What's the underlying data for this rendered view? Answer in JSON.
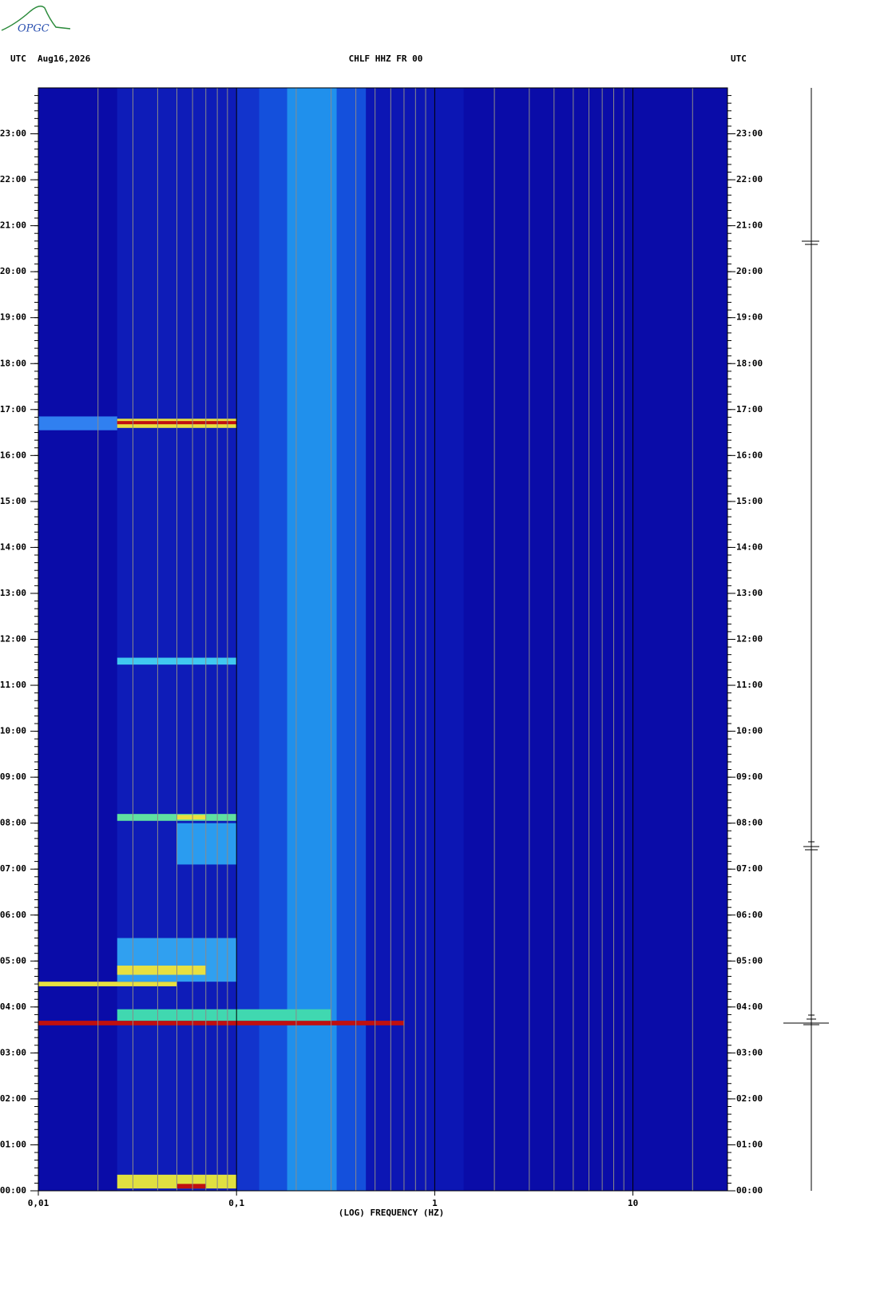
{
  "logo": "OPGC",
  "chart_data": {
    "type": "spectrogram",
    "header_left": "UTC",
    "date": "Aug16,2026",
    "title": "CHLF HHZ FR 00",
    "header_right": "UTC",
    "xlabel": "(LOG) FREQUENCY (HZ)",
    "xscale": "log",
    "xlim": [
      0.01,
      30
    ],
    "xticks": [
      {
        "value": 0.01,
        "label": "0,01"
      },
      {
        "value": 0.1,
        "label": "0,1"
      },
      1,
      10
    ],
    "ylim": [
      0,
      24
    ],
    "yticks": [
      {
        "value": 0,
        "label": "00:00"
      },
      {
        "value": 1,
        "label": "01:00"
      },
      {
        "value": 2,
        "label": "02:00"
      },
      {
        "value": 3,
        "label": "03:00"
      },
      {
        "value": 4,
        "label": "04:00"
      },
      {
        "value": 5,
        "label": "05:00"
      },
      {
        "value": 6,
        "label": "06:00"
      },
      {
        "value": 7,
        "label": "07:00"
      },
      {
        "value": 8,
        "label": "08:00"
      },
      {
        "value": 9,
        "label": "09:00"
      },
      {
        "value": 10,
        "label": "10:00"
      },
      {
        "value": 11,
        "label": "11:00"
      },
      {
        "value": 12,
        "label": "12:00"
      },
      {
        "value": 13,
        "label": "13:00"
      },
      {
        "value": 14,
        "label": "14:00"
      },
      {
        "value": 15,
        "label": "15:00"
      },
      {
        "value": 16,
        "label": "16:00"
      },
      {
        "value": 17,
        "label": "17:00"
      },
      {
        "value": 18,
        "label": "18:00"
      },
      {
        "value": 19,
        "label": "19:00"
      },
      {
        "value": 20,
        "label": "20:00"
      },
      {
        "value": 21,
        "label": "21:00"
      },
      {
        "value": 22,
        "label": "22:00"
      },
      {
        "value": 23,
        "label": "23:00"
      }
    ],
    "background": "#0a0ca8",
    "events": [
      {
        "start": 0,
        "end": 24,
        "fmin": 0.025,
        "fmax": 0.1,
        "color": "#0e1cb8"
      },
      {
        "start": 0,
        "end": 24,
        "fmin": 0.1,
        "fmax": 0.13,
        "color": "#1234cc"
      },
      {
        "start": 0,
        "end": 24,
        "fmin": 0.13,
        "fmax": 0.45,
        "color": "#1450dc"
      },
      {
        "start": 0,
        "end": 24,
        "fmin": 0.18,
        "fmax": 0.32,
        "color": "#2090ec"
      },
      {
        "start": 0,
        "end": 24,
        "fmin": 0.45,
        "fmax": 1.4,
        "color": "#0c16b4"
      },
      {
        "start": 0.05,
        "end": 0.35,
        "fmin": 0.025,
        "fmax": 0.1,
        "color": "#e0e040"
      },
      {
        "start": 0.05,
        "end": 0.15,
        "fmin": 0.05,
        "fmax": 0.07,
        "color": "#c01010"
      },
      {
        "start": 3.6,
        "end": 3.7,
        "fmin": 0.01,
        "fmax": 0.7,
        "color": "#c01010"
      },
      {
        "start": 3.7,
        "end": 3.95,
        "fmin": 0.025,
        "fmax": 0.3,
        "color": "#40d8b0"
      },
      {
        "start": 4.45,
        "end": 4.55,
        "fmin": 0.01,
        "fmax": 0.05,
        "color": "#e8e040"
      },
      {
        "start": 4.55,
        "end": 5.5,
        "fmin": 0.025,
        "fmax": 0.1,
        "color": "#30a0f0"
      },
      {
        "start": 4.7,
        "end": 4.9,
        "fmin": 0.025,
        "fmax": 0.07,
        "color": "#e8e040"
      },
      {
        "start": 7.1,
        "end": 8.0,
        "fmin": 0.05,
        "fmax": 0.1,
        "color": "#2a9cf0"
      },
      {
        "start": 8.05,
        "end": 8.2,
        "fmin": 0.025,
        "fmax": 0.1,
        "color": "#60e0a0"
      },
      {
        "start": 8.08,
        "end": 8.18,
        "fmin": 0.05,
        "fmax": 0.07,
        "color": "#e8e040"
      },
      {
        "start": 11.45,
        "end": 11.6,
        "fmin": 0.025,
        "fmax": 0.1,
        "color": "#40c8f0"
      },
      {
        "start": 16.55,
        "end": 16.85,
        "fmin": 0.01,
        "fmax": 0.025,
        "color": "#3080f0"
      },
      {
        "start": 16.6,
        "end": 16.8,
        "fmin": 0.025,
        "fmax": 0.1,
        "color": "#e8e040"
      },
      {
        "start": 16.68,
        "end": 16.75,
        "fmin": 0.025,
        "fmax": 0.1,
        "color": "#c01010"
      }
    ]
  }
}
